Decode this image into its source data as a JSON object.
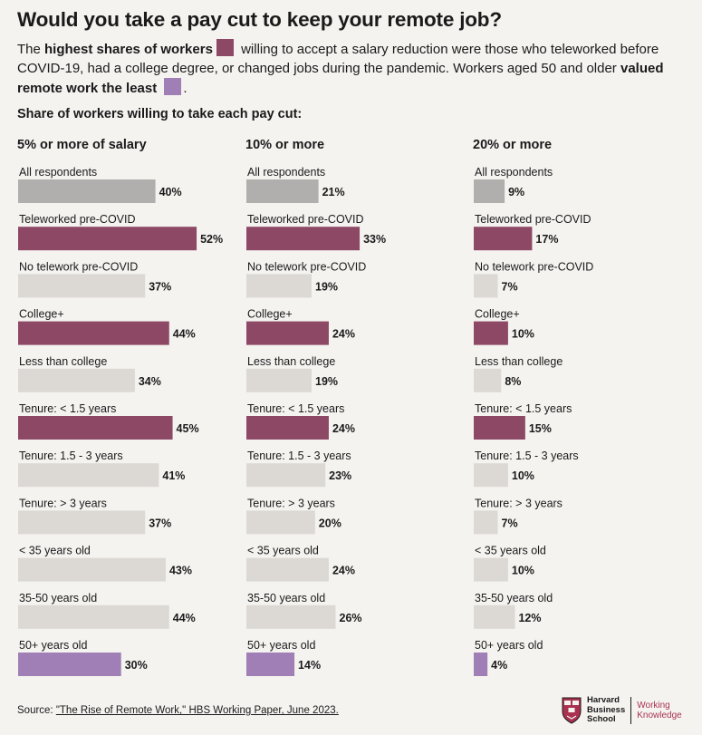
{
  "title": "Would you take a pay cut to keep your remote job?",
  "subtitle": {
    "part1": "The ",
    "bold1": "highest shares of workers",
    "part2": " willing to accept a salary reduction were those who teleworked before COVID-19, had a college degree, or changed jobs during the pandemic. Workers aged 50 and older ",
    "bold2": "valued remote work the least",
    "part3": "."
  },
  "share_heading": "Share of workers willing to take each pay cut:",
  "colors": {
    "high": "#8d4866",
    "low": "#9f7fb5",
    "all": "#b1afad",
    "neutral": "#dcd9d5"
  },
  "chart_data": [
    {
      "type": "bar",
      "orientation": "horizontal",
      "title": "5% or more of salary",
      "categories": [
        "All respondents",
        "Teleworked pre-COVID",
        "No telework pre-COVID",
        "College+",
        "Less than college",
        "Tenure: < 1.5 years",
        "Tenure: 1.5 - 3 years",
        "Tenure: > 3 years",
        "< 35 years old",
        "35-50 years old",
        "50+ years old"
      ],
      "values": [
        40,
        52,
        37,
        44,
        34,
        45,
        41,
        37,
        43,
        44,
        30
      ],
      "value_labels": [
        "40%",
        "52%",
        "37%",
        "44%",
        "34%",
        "45%",
        "41%",
        "37%",
        "43%",
        "44%",
        "30%"
      ],
      "highlight": [
        "all",
        "high",
        "neutral",
        "high",
        "neutral",
        "high",
        "neutral",
        "neutral",
        "neutral",
        "neutral",
        "low"
      ],
      "unit": "%"
    },
    {
      "type": "bar",
      "orientation": "horizontal",
      "title": "10% or more",
      "categories": [
        "All respondents",
        "Teleworked pre-COVID",
        "No telework pre-COVID",
        "College+",
        "Less than college",
        "Tenure: < 1.5 years",
        "Tenure: 1.5 - 3 years",
        "Tenure: > 3 years",
        "< 35 years old",
        "35-50 years old",
        "50+ years old"
      ],
      "values": [
        21,
        33,
        19,
        24,
        19,
        24,
        23,
        20,
        24,
        26,
        14
      ],
      "value_labels": [
        "21%",
        "33%",
        "19%",
        "24%",
        "19%",
        "24%",
        "23%",
        "20%",
        "24%",
        "26%",
        "14%"
      ],
      "highlight": [
        "all",
        "high",
        "neutral",
        "high",
        "neutral",
        "high",
        "neutral",
        "neutral",
        "neutral",
        "neutral",
        "low"
      ],
      "unit": "%"
    },
    {
      "type": "bar",
      "orientation": "horizontal",
      "title": "20% or more",
      "categories": [
        "All respondents",
        "Teleworked pre-COVID",
        "No telework pre-COVID",
        "College+",
        "Less than college",
        "Tenure: < 1.5 years",
        "Tenure: 1.5 - 3 years",
        "Tenure: > 3 years",
        "< 35 years old",
        "35-50 years old",
        "50+ years old"
      ],
      "values": [
        9,
        17,
        7,
        10,
        8,
        15,
        10,
        7,
        10,
        12,
        4
      ],
      "value_labels": [
        "9%",
        "17%",
        "7%",
        "10%",
        "8%",
        "15%",
        "10%",
        "7%",
        "10%",
        "12%",
        "4%"
      ],
      "highlight": [
        "all",
        "high",
        "neutral",
        "high",
        "neutral",
        "high",
        "neutral",
        "neutral",
        "neutral",
        "neutral",
        "low"
      ],
      "unit": "%"
    }
  ],
  "source": {
    "prefix": "Source: ",
    "link_text": "\"The Rise of Remote Work,\" HBS Working Paper, June 2023."
  },
  "logo": {
    "icon": "hbs-shield-icon",
    "line1": "Harvard",
    "line2": "Business",
    "line3": "School",
    "wk_line1": "Working",
    "wk_line2": "Knowledge"
  }
}
